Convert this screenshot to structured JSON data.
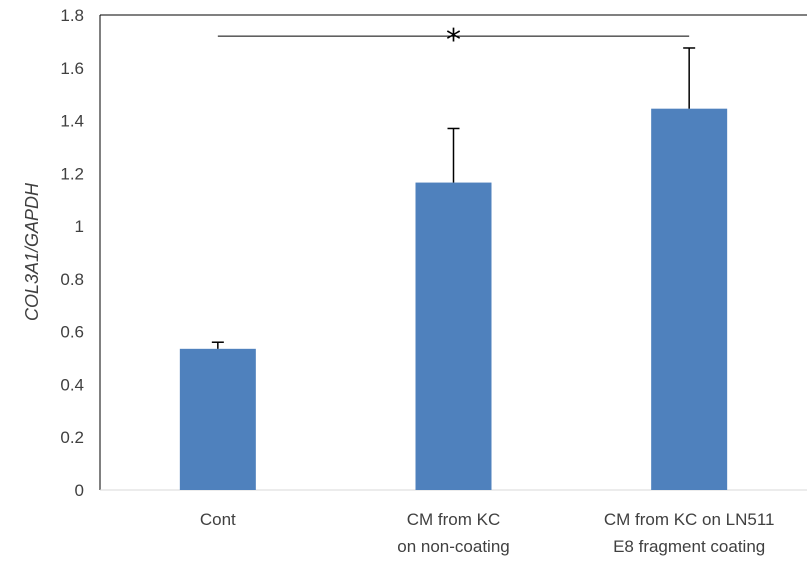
{
  "chart_data": {
    "type": "bar",
    "title": "",
    "xlabel": "",
    "ylabel": "COL3A1/GAPDH",
    "categories": [
      [
        "Cont"
      ],
      [
        "CM from KC",
        "on non-coating"
      ],
      [
        "CM from KC on LN511",
        "E8 fragment coating"
      ]
    ],
    "values": [
      0.535,
      1.165,
      1.445
    ],
    "errors": [
      0.025,
      0.205,
      0.23
    ],
    "ylim": [
      0,
      1.8
    ],
    "yticks": [
      0,
      0.2,
      0.4,
      0.6,
      0.8,
      1,
      1.2,
      1.4,
      1.6,
      1.8
    ],
    "ytick_labels": [
      "0",
      "0.2",
      "0.4",
      "0.6",
      "0.8",
      "1",
      "1.2",
      "1.4",
      "1.6",
      "1.8"
    ],
    "grid": false,
    "legend": "none",
    "bar_color": "#4f81bd",
    "annotations": [
      {
        "type": "significance",
        "text": "*",
        "from_category": 0,
        "to_category": 2,
        "y": 1.72
      }
    ]
  }
}
